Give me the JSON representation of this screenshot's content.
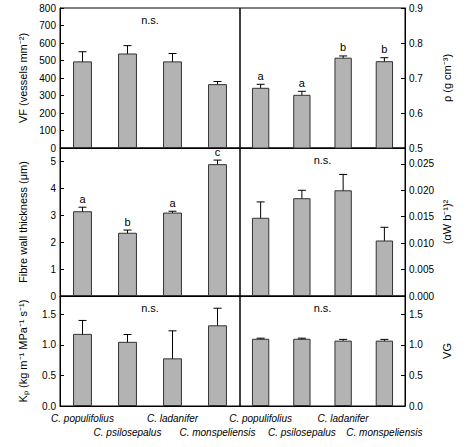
{
  "chart_data": [
    {
      "type": "bar",
      "y_label": "VF (vessels mm⁻²)",
      "annotation": "n.s.",
      "categories": [
        "C. populifolius",
        "C. psilosepalus",
        "C. ladanifer",
        "C. monspeliensis"
      ],
      "values": [
        495,
        540,
        495,
        365
      ],
      "errors": [
        55,
        45,
        45,
        15
      ],
      "color": "#b3b3b3",
      "ylim": [
        0,
        800
      ],
      "yticks": [
        0,
        100,
        200,
        300,
        400,
        500,
        600,
        700,
        800
      ],
      "tick_labels": "y"
    },
    {
      "type": "bar",
      "y_label": "ρ (g cm⁻³)",
      "categories": [
        "C. populifolius",
        "C. psilosepalus",
        "C. ladanifer",
        "C. monspeliensis"
      ],
      "values": [
        0.672,
        0.652,
        0.758,
        0.748
      ],
      "errors": [
        0.01,
        0.01,
        0.005,
        0.01
      ],
      "letters": [
        "a",
        "a",
        "b",
        "b"
      ],
      "color": "#b3b3b3",
      "ylim": [
        0.5,
        0.9
      ],
      "yticks": [
        0.5,
        0.6,
        0.7,
        0.8,
        0.9
      ],
      "tick_labels": "y"
    },
    {
      "type": "bar",
      "y_label": "Fibre wall thickness (μm)",
      "categories": [
        "C. populifolius",
        "C. psilosepalus",
        "C. ladanifer",
        "C. monspeliensis"
      ],
      "values": [
        3.15,
        2.35,
        3.1,
        4.9
      ],
      "errors": [
        0.15,
        0.1,
        0.05,
        0.15
      ],
      "letters": [
        "a",
        "b",
        "a",
        "c"
      ],
      "color": "#b3b3b3",
      "ylim": [
        0,
        5.5
      ],
      "yticks": [
        0,
        1,
        2,
        3,
        4,
        5
      ],
      "tick_labels": "y"
    },
    {
      "type": "bar",
      "y_label": "(αW b⁻¹)²",
      "annotation": "n.s.",
      "categories": [
        "C. populifolius",
        "C. psilosepalus",
        "C. ladanifer",
        "C. monspeliensis"
      ],
      "values": [
        0.0148,
        0.0185,
        0.02,
        0.0105
      ],
      "errors": [
        0.003,
        0.0015,
        0.003,
        0.0025
      ],
      "color": "#b3b3b3",
      "ylim": [
        0,
        0.028
      ],
      "yticks": [
        {
          "value": 0,
          "label": "0.000"
        },
        {
          "value": 0.005,
          "label": "0.005"
        },
        {
          "value": 0.01,
          "label": "0.010"
        },
        {
          "value": 0.015,
          "label": "0.015"
        },
        {
          "value": 0.02,
          "label": "0.020"
        },
        {
          "value": 0.025,
          "label": "0.025"
        }
      ],
      "tick_labels": "y"
    },
    {
      "type": "bar",
      "y_label": "Kₚ (kg m⁻¹ MPa⁻¹ s⁻¹)",
      "annotation": "n.s.",
      "categories": [
        "C. populifolius",
        "C. psilosepalus",
        "C. ladanifer",
        "C. monspeliensis"
      ],
      "values": [
        1.18,
        1.05,
        0.78,
        1.32
      ],
      "errors": [
        0.22,
        0.12,
        0.45,
        0.28
      ],
      "color": "#b3b3b3",
      "ylim": [
        0,
        1.8
      ],
      "yticks": [
        {
          "value": 0,
          "label": "0.0"
        },
        {
          "value": 0.5,
          "label": "0.5"
        },
        {
          "value": 1,
          "label": "1.0"
        },
        {
          "value": 1.5,
          "label": "1.5"
        }
      ]
    },
    {
      "type": "bar",
      "y_label": "VG",
      "annotation": "n.s.",
      "categories": [
        "C. populifolius",
        "C. psilosepalus",
        "C. ladanifer",
        "C. monspeliensis"
      ],
      "values": [
        1.1,
        1.1,
        1.07,
        1.07
      ],
      "errors": [
        0.01,
        0.01,
        0.02,
        0.02
      ],
      "color": "#b3b3b3",
      "ylim": [
        0,
        1.8
      ],
      "yticks": [
        {
          "value": 0,
          "label": "0.0"
        },
        {
          "value": 0.5,
          "label": "0.5"
        },
        {
          "value": 1,
          "label": "1.0"
        },
        {
          "value": 1.5,
          "label": "1.5"
        }
      ]
    }
  ]
}
